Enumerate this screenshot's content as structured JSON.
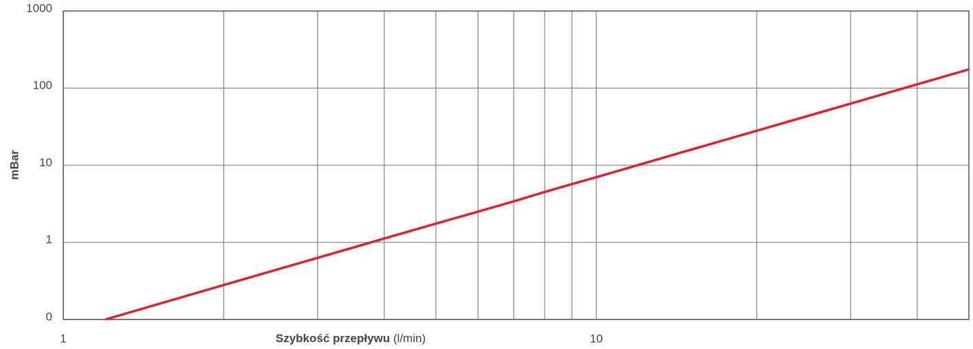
{
  "chart_data": {
    "type": "line",
    "ylabel": "mBar",
    "xlabel": "Szybkość przepływu",
    "xunit": "(l/min)",
    "xscale": "log",
    "yscale": "log",
    "xlim": [
      1,
      50
    ],
    "ylim": [
      0.1,
      1000
    ],
    "xticks": [
      1,
      10
    ],
    "xminor": [
      2,
      3,
      4,
      5,
      6,
      7,
      8,
      9,
      20,
      30,
      40
    ],
    "yticks": [
      {
        "value": 0.1,
        "label": "0"
      },
      1,
      10,
      100,
      1000
    ],
    "grid": true,
    "x": [
      1.2,
      2,
      3,
      4,
      5,
      6,
      7,
      8,
      9,
      10,
      15,
      20,
      30,
      40,
      50
    ],
    "series": [
      {
        "color": "#e3202a",
        "values": [
          0.1,
          0.28,
          0.63,
          1.12,
          1.75,
          2.5,
          3.4,
          4.5,
          5.7,
          7,
          15.8,
          28,
          63,
          112,
          175
        ]
      }
    ]
  }
}
